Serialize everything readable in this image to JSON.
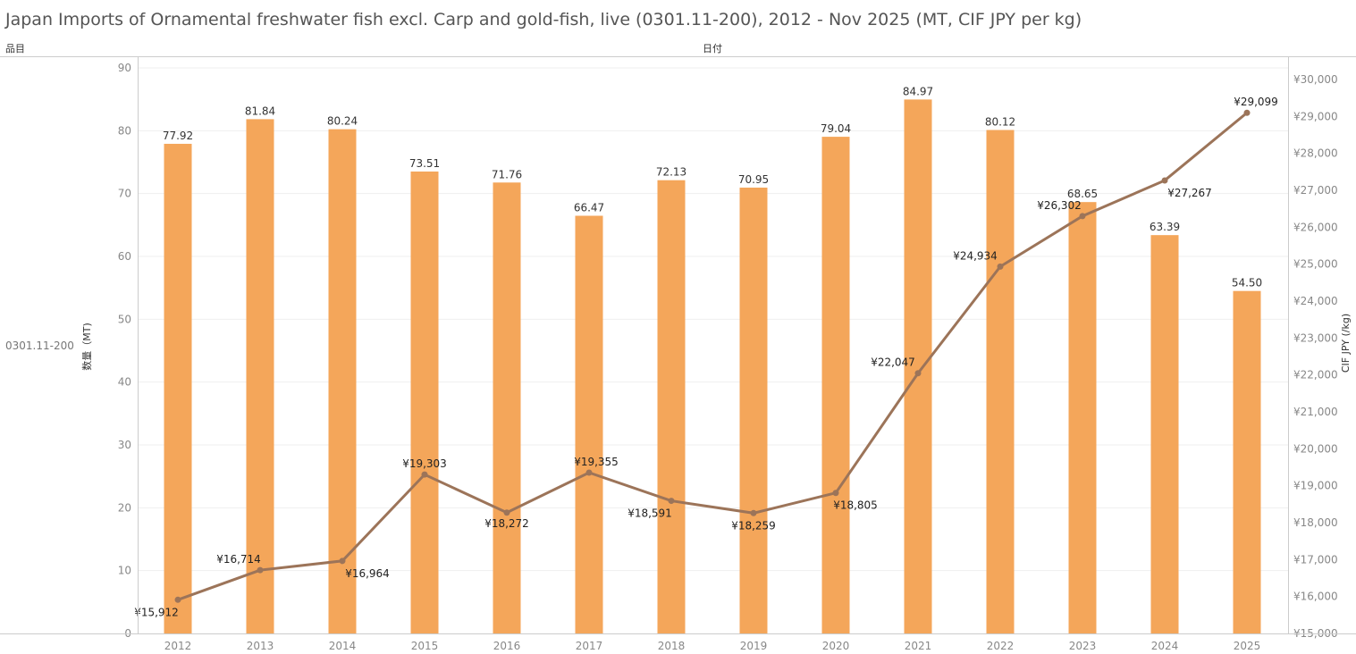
{
  "header": {
    "row_label": "品目",
    "column_label": "日付",
    "row_value": "0301.11-200"
  },
  "chart_data": {
    "type": "bar+line",
    "title": "Japan Imports of Ornamental freshwater fish excl. Carp and gold-fish, live (0301.11-200), 2012 - Nov 2025 (MT, CIF JPY per kg)",
    "categories": [
      "2012",
      "2013",
      "2014",
      "2015",
      "2016",
      "2017",
      "2018",
      "2019",
      "2020",
      "2021",
      "2022",
      "2023",
      "2024",
      "2025"
    ],
    "series": [
      {
        "name": "数量（MT)",
        "type": "bar",
        "axis": "left",
        "values": [
          77.92,
          81.84,
          80.24,
          73.51,
          71.76,
          66.47,
          72.13,
          70.95,
          79.04,
          84.97,
          80.12,
          68.65,
          63.39,
          54.5
        ],
        "labels": [
          "77.92",
          "81.84",
          "80.24",
          "73.51",
          "71.76",
          "66.47",
          "72.13",
          "70.95",
          "79.04",
          "84.97",
          "80.12",
          "68.65",
          "63.39",
          "54.50"
        ]
      },
      {
        "name": "CIF JPY (/kg)",
        "type": "line",
        "axis": "right",
        "values": [
          15912,
          16714,
          16964,
          19303,
          18272,
          19355,
          18591,
          18259,
          18805,
          22047,
          24934,
          26302,
          27267,
          29099
        ],
        "labels": [
          "¥15,912",
          "¥16,714",
          "¥16,964",
          "¥19,303",
          "¥18,272",
          "¥19,355",
          "¥18,591",
          "¥18,259",
          "¥18,805",
          "¥22,047",
          "¥24,934",
          "¥26,302",
          "¥27,267",
          "¥29,099"
        ]
      }
    ],
    "ylabel": "数量（MT)",
    "y2label": "CIF JPY (/kg)",
    "ylim": [
      0,
      90
    ],
    "y2lim": [
      15000,
      30000
    ],
    "yticks": [
      "0",
      "10",
      "20",
      "30",
      "40",
      "50",
      "60",
      "70",
      "80",
      "90"
    ],
    "y2ticks": [
      "¥15,000",
      "¥16,000",
      "¥17,000",
      "¥18,000",
      "¥19,000",
      "¥20,000",
      "¥21,000",
      "¥22,000",
      "¥23,000",
      "¥24,000",
      "¥25,000",
      "¥26,000",
      "¥27,000",
      "¥28,000",
      "¥29,000",
      "¥30,000"
    ],
    "grid": true,
    "colors": {
      "bar": "#F4A65A",
      "line": "#9C7459"
    }
  }
}
